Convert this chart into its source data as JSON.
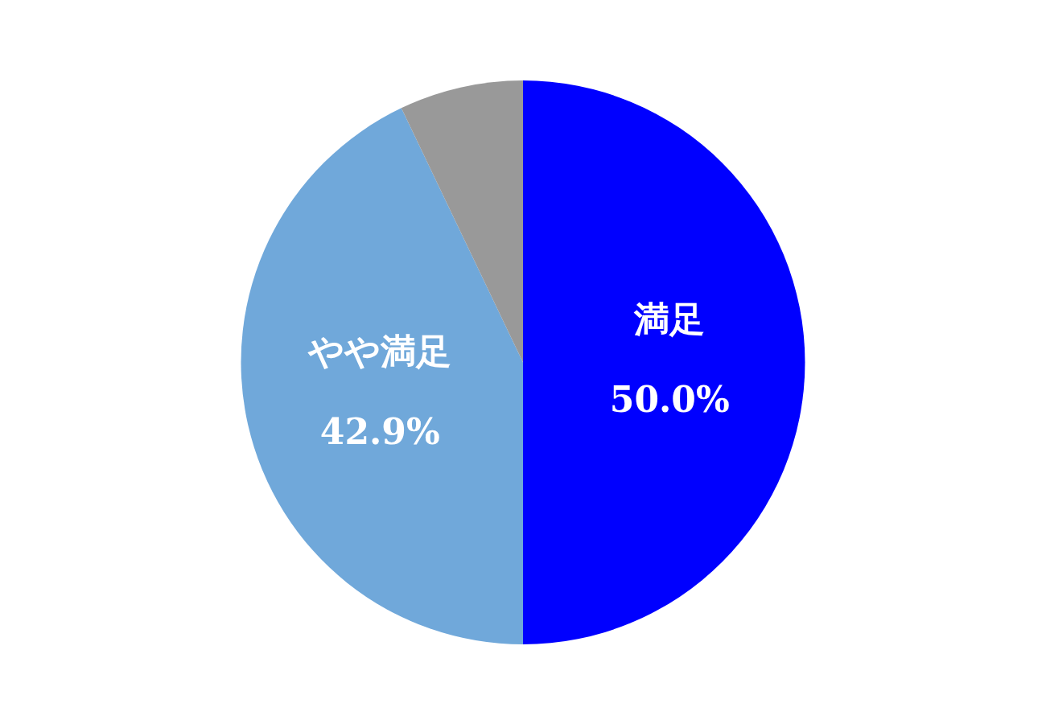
{
  "chart_data": {
    "type": "pie",
    "categories": [
      "満足",
      "やや満足",
      null
    ],
    "values": [
      50.0,
      42.9,
      7.1
    ],
    "colors": [
      "#0000ff",
      "#70a8da",
      "#999999"
    ],
    "value_labels": [
      "50.0%",
      "42.9%",
      null
    ],
    "legend": false
  }
}
